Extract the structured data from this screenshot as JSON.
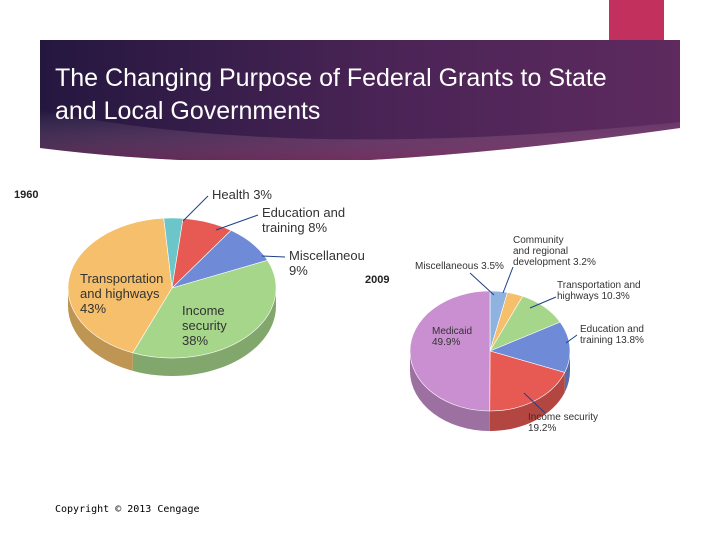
{
  "title": "The Changing Purpose of Federal Grants to State and Local Governments",
  "copyright": "Copyright © 2013 Cengage",
  "colors": {
    "banner_dark": "#2b1b47",
    "banner_mid": "#5a2a63",
    "banner_accent": "#7a3a75",
    "pink_tab": "#c2305e"
  },
  "chart_data": [
    {
      "type": "pie",
      "title": "1960",
      "slices": [
        {
          "name": "Health",
          "value": 3,
          "label_lines": [
            "Health 3%"
          ],
          "color": "#6cc5c8"
        },
        {
          "name": "Education and training",
          "value": 8,
          "label_lines": [
            "Education and",
            "training 8%"
          ],
          "color": "#e75a54"
        },
        {
          "name": "Miscellaneous",
          "value": 9,
          "label_lines": [
            "Miscellaneou",
            "9%"
          ],
          "color": "#6f8ad6"
        },
        {
          "name": "Income security",
          "value": 38,
          "label_lines": [
            "Income",
            "security",
            "38%"
          ],
          "color": "#a6d68a"
        },
        {
          "name": "Transportation and highways",
          "value": 43,
          "label_lines": [
            "Transportation",
            "and highways",
            "43%"
          ],
          "color": "#f5bf6b"
        }
      ]
    },
    {
      "type": "pie",
      "title": "2009",
      "slices": [
        {
          "name": "Miscellaneous",
          "value": 3.5,
          "label_lines": [
            "Miscellaneous 3.5%"
          ],
          "color": "#8fb2e0"
        },
        {
          "name": "Community and regional development",
          "value": 3.2,
          "label_lines": [
            "Community",
            "and regional",
            "development 3.2%"
          ],
          "color": "#f5bf6b"
        },
        {
          "name": "Transportation and highways",
          "value": 10.3,
          "label_lines": [
            "Transportation and",
            "highways 10.3%"
          ],
          "color": "#a6d68a"
        },
        {
          "name": "Education and training",
          "value": 13.8,
          "label_lines": [
            "Education and",
            "training 13.8%"
          ],
          "color": "#6f8ad6"
        },
        {
          "name": "Income security",
          "value": 19.2,
          "label_lines": [
            "Income security",
            "19.2%"
          ],
          "color": "#e75a54"
        },
        {
          "name": "Medicaid",
          "value": 49.9,
          "label_lines": [
            "Medicaid",
            "49.9%"
          ],
          "color": "#c98fd0"
        }
      ]
    }
  ]
}
